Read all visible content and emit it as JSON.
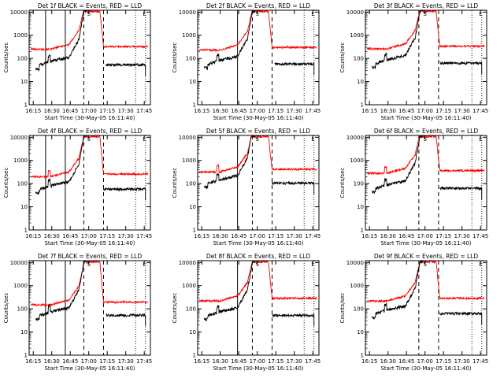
{
  "chart_data": {
    "type": "line",
    "grid": false,
    "y_scale": "log",
    "ylim": [
      1,
      12000
    ],
    "y_ticks": [
      1,
      10,
      100,
      1000,
      10000
    ],
    "y_tick_labels": [
      "1",
      "10",
      "100",
      "1000",
      "10000"
    ],
    "ylabel": "Counts/sec",
    "xlabel": "Start Time (30-May-05 16:11:40)",
    "xlim": [
      "16:11:40",
      "17:50:00"
    ],
    "x_ticks": [
      "16:15",
      "16:30",
      "16:45",
      "17:00",
      "17:15",
      "17:30",
      "17:45"
    ],
    "colors": {
      "events": "#000000",
      "lld": "#ff0000"
    },
    "series_legend": "BLACK = Events, RED = LLD",
    "annotations": {
      "flag_a": "S",
      "flag_b": "L"
    },
    "panels": [
      {
        "title": "Det 1f BLACK = Events, RED = LLD",
        "solid_lines": [
          "16:25",
          "16:41"
        ],
        "dashed_lines": [
          "16:56",
          "17:12"
        ],
        "dotted_lines": [
          "17:38",
          "17:46"
        ],
        "lld_base": 250,
        "lld_bump": 0,
        "events_base": 50,
        "events_gap": true
      },
      {
        "title": "Det 2f BLACK = Events, RED = LLD",
        "solid_lines": [
          "16:44"
        ],
        "dashed_lines": [
          "16:56",
          "17:12"
        ],
        "dotted_lines": [
          "17:38",
          "17:46"
        ],
        "lld_base": 230,
        "lld_bump": 0,
        "events_base": 55,
        "events_gap": true
      },
      {
        "title": "Det 3f BLACK = Events, RED = LLD",
        "solid_lines": [],
        "dashed_lines": [
          "16:55",
          "17:11"
        ],
        "dotted_lines": [
          "17:38",
          "17:46"
        ],
        "lld_base": 260,
        "lld_bump": 0,
        "events_base": 60,
        "events_gap": false
      },
      {
        "title": "Det 4f BLACK = Events, RED = LLD",
        "solid_lines": [
          "16:25",
          "16:41"
        ],
        "dashed_lines": [
          "16:56",
          "17:12"
        ],
        "dotted_lines": [
          "17:38",
          "17:46"
        ],
        "lld_base": 200,
        "lld_bump": 1,
        "events_base": 55,
        "events_gap": false
      },
      {
        "title": "Det 5f BLACK = Events, RED = LLD",
        "solid_lines": [
          "16:44"
        ],
        "dashed_lines": [
          "16:56",
          "17:12"
        ],
        "dotted_lines": [
          "17:38",
          "17:46"
        ],
        "lld_base": 320,
        "lld_bump": 1,
        "events_base": 100,
        "events_gap": false
      },
      {
        "title": "Det 6f BLACK = Events, RED = LLD",
        "solid_lines": [],
        "dashed_lines": [
          "16:55",
          "17:11"
        ],
        "dotted_lines": [
          "17:38",
          "17:46"
        ],
        "lld_base": 280,
        "lld_bump": 1,
        "events_base": 60,
        "events_gap": false
      },
      {
        "title": "Det 7f BLACK = Events, RED = LLD",
        "solid_lines": [
          "16:25",
          "16:41"
        ],
        "dashed_lines": [
          "16:56",
          "17:12"
        ],
        "dotted_lines": [
          "17:38",
          "17:46"
        ],
        "lld_base": 150,
        "lld_bump": 0,
        "events_base": 50,
        "events_gap": true
      },
      {
        "title": "Det 8f BLACK = Events, RED = LLD",
        "solid_lines": [
          "16:44"
        ],
        "dashed_lines": [
          "16:56",
          "17:12"
        ],
        "dotted_lines": [
          "17:38",
          "17:46"
        ],
        "lld_base": 220,
        "lld_bump": 0,
        "events_base": 50,
        "events_gap": false
      },
      {
        "title": "Det 9f BLACK = Events, RED = LLD",
        "solid_lines": [],
        "dashed_lines": [
          "16:55",
          "17:11"
        ],
        "dotted_lines": [
          "17:38",
          "17:46"
        ],
        "lld_base": 220,
        "lld_bump": 0,
        "events_base": 60,
        "events_gap": false
      }
    ]
  }
}
